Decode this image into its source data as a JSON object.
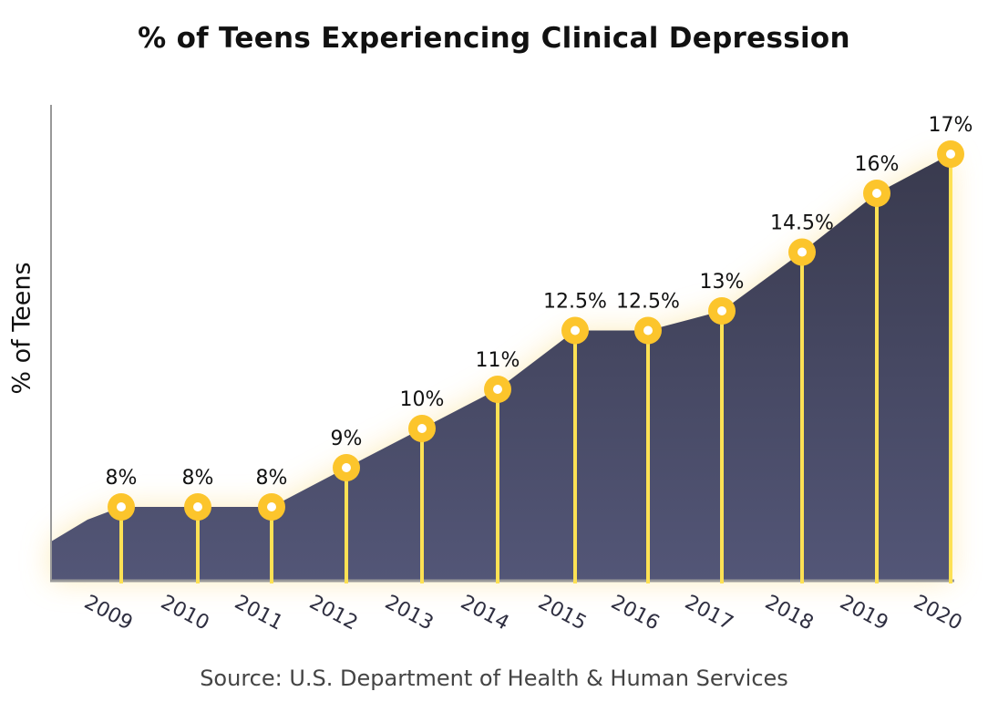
{
  "chart_data": {
    "type": "area",
    "title": "% of Teens Experiencing Clinical Depression",
    "xlabel": "",
    "ylabel": "% of Teens",
    "source": "Source: U.S. Department of Health & Human Services",
    "categories": [
      "2009",
      "2010",
      "2011",
      "2012",
      "2013",
      "2014",
      "2015",
      "2016",
      "2017",
      "2018",
      "2019",
      "2020"
    ],
    "series": [
      {
        "name": "% of Teens",
        "values": [
          8,
          8,
          8,
          9,
          10,
          11,
          12.5,
          12.5,
          13,
          14.5,
          16,
          17
        ],
        "labels": [
          "8%",
          "8%",
          "8%",
          "9%",
          "10%",
          "11%",
          "12.5%",
          "12.5%",
          "13%",
          "14.5%",
          "16%",
          "17%"
        ]
      }
    ],
    "grid": false,
    "legend": "none",
    "colors": {
      "area_top": "#393a4e",
      "area_bottom": "#535677",
      "marker": "#fcc52c",
      "stem": "#fde154",
      "glow": "#fde9b0",
      "axis": "#999999"
    }
  }
}
